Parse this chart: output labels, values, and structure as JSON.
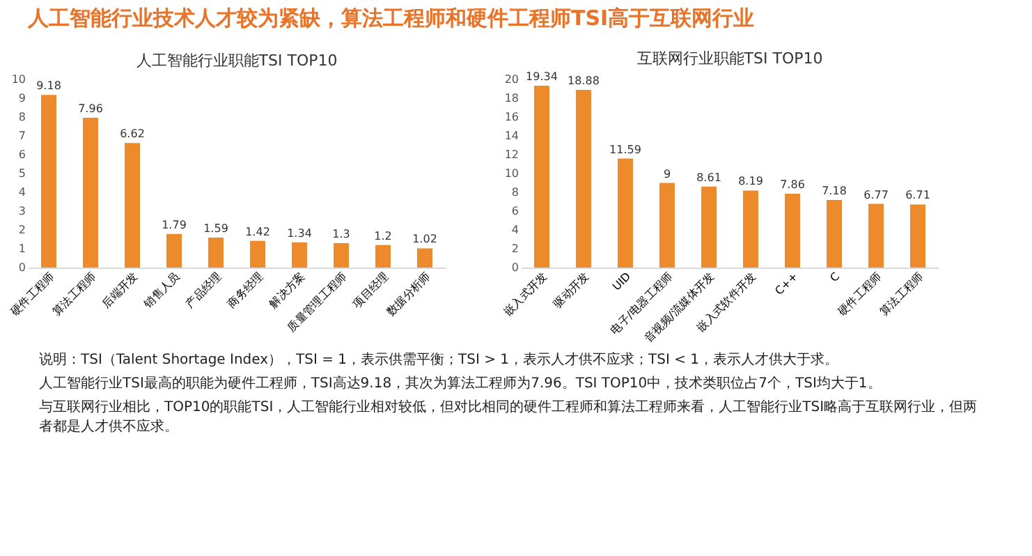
{
  "chart_data": [
    {
      "type": "other",
      "title": "人工智能行业技术人才较为紧缺，算法工程师和硬件工程师TSI高于互联网行业",
      "color": "#e8742a"
    },
    {
      "type": "bar",
      "title": "人工智能行业职能TSI TOP10",
      "categories": [
        "硬件工程师",
        "算法工程师",
        "后端开发",
        "销售人员",
        "产品经理",
        "商务经理",
        "解决方案",
        "质量管理工程师",
        "项目经理",
        "数据分析师"
      ],
      "values": [
        9.18,
        7.96,
        6.62,
        1.79,
        1.59,
        1.42,
        1.34,
        1.3,
        1.2,
        1.02
      ],
      "color": "#ed8b2c",
      "ylim": [
        0,
        10
      ],
      "yticks": [
        0,
        1,
        2,
        3,
        4,
        5,
        6,
        7,
        8,
        9,
        10
      ],
      "data_labels": true,
      "grid": false
    },
    {
      "type": "bar",
      "title": "互联网行业职能TSI TOP10",
      "categories": [
        "嵌入式开发",
        "驱动开发",
        "UID",
        "电子/电器工程师",
        "音视频/流媒体开发",
        "嵌入式软件开发",
        "C++",
        "C",
        "硬件工程师",
        "算法工程师"
      ],
      "values": [
        19.34,
        18.88,
        11.59,
        9,
        8.61,
        8.19,
        7.86,
        7.18,
        6.77,
        6.71
      ],
      "color": "#ed8b2c",
      "ylim": [
        0,
        20
      ],
      "yticks": [
        0,
        2,
        4,
        6,
        8,
        10,
        12,
        14,
        16,
        18,
        20
      ],
      "data_labels": true,
      "grid": false
    },
    {
      "type": "other",
      "annotations": [
        "说明：TSI（Talent Shortage Index），TSI = 1，表示供需平衡；TSI > 1，表示人才供不应求；TSI < 1，表示人才供大于求。",
        "人工智能行业TSI最高的职能为硬件工程师，TSI高达9.18，其次为算法工程师为7.96。TSI TOP10中，技术类职位占7个，TSI均大于1。",
        "与互联网行业相比，TOP10的职能TSI，人工智能行业相对较低，但对比相同的硬件工程师和算法工程师来看，人工智能行业TSI略高于互联网行业，但两者都是人才供不应求。"
      ]
    }
  ]
}
